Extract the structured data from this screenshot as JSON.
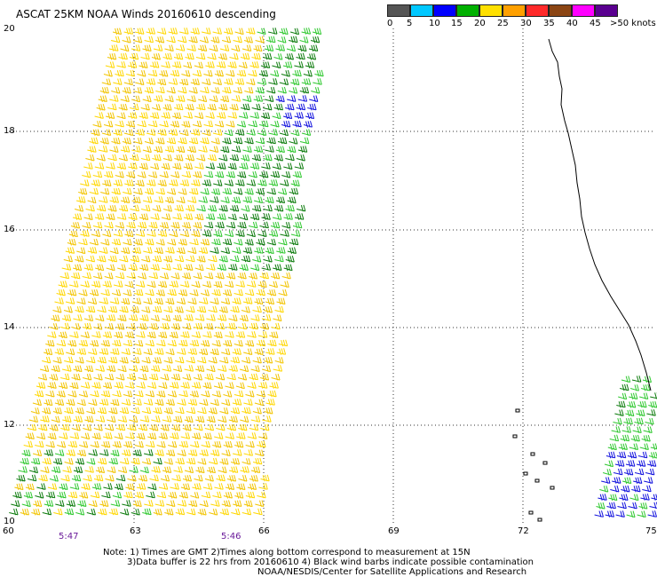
{
  "header": {
    "title": "ASCAT 25KM NOAA Winds 20160610 descending"
  },
  "legend": {
    "colors": [
      "#555555",
      "#00c8ff",
      "#0000ff",
      "#00b000",
      "#ffe000",
      "#ffa000",
      "#ff2a2a",
      "#8b4513",
      "#ff00ff",
      "#5a0090",
      "#2a006a"
    ],
    "labels": [
      "0",
      "5",
      "10",
      "15",
      "20",
      "25",
      "30",
      "35",
      "40",
      "45",
      ">50 knots"
    ]
  },
  "axes": {
    "lat_labels": [
      "20",
      "18",
      "16",
      "14",
      "12",
      "10"
    ],
    "lon_labels": [
      "60",
      "63",
      "66",
      "69",
      "72",
      "75"
    ]
  },
  "times": [
    "5:47",
    "5:46"
  ],
  "notes": [
    "Note: 1) Times are GMT 2)Times along bottom correspond to measurement at 15N",
    "3)Data buffer is 22 hrs from 20160610 4) Black wind barbs indicate possible contamination",
    "NOAA/NESDIS/Center for Satellite Applications and Research"
  ]
}
